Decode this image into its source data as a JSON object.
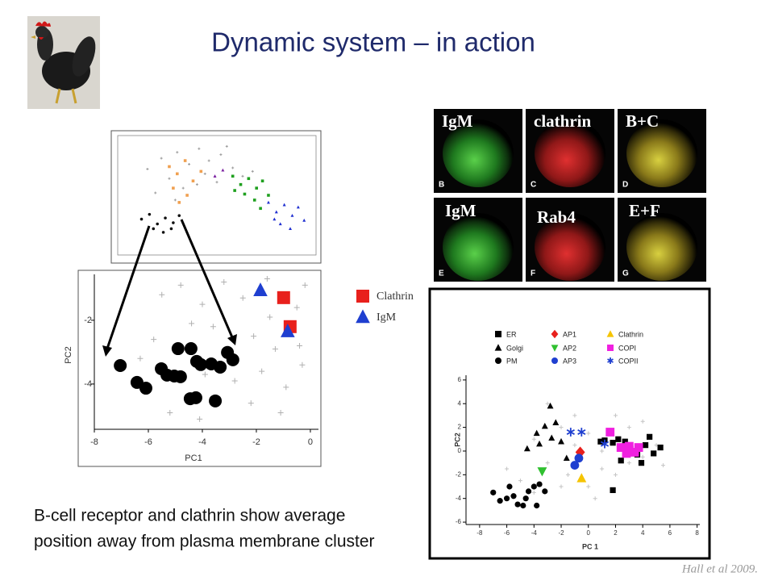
{
  "header": {
    "title": "Dynamic system – in action"
  },
  "body_text": [
    "B-cell receptor and clathrin show average",
    "position away from plasma membrane cluster"
  ],
  "citation": "Hall et al 2009.",
  "micrographs": [
    {
      "label": "IgM",
      "letter": "B"
    },
    {
      "label": "clathrin",
      "letter": "C"
    },
    {
      "label": "B+C",
      "letter": "D"
    },
    {
      "label": "IgM",
      "letter": "E"
    },
    {
      "label": "Rab4",
      "letter": "F"
    },
    {
      "label": "E+F",
      "letter": "G"
    }
  ],
  "chart_data": [
    {
      "type": "scatter",
      "xlim": [
        0,
        10
      ],
      "ylim": [
        0,
        10
      ],
      "series": [
        {
          "color": "#9a9a9a",
          "marker": "cross",
          "x": [
            1.5,
            2.2,
            3.0,
            3.6,
            4.1,
            4.6,
            5.2,
            2.6,
            3.3,
            4.4,
            5.0,
            5.8,
            6.3,
            1.9,
            2.9,
            4.0,
            6.8,
            5.5
          ],
          "y": [
            7.2,
            8.1,
            8.6,
            7.6,
            8.9,
            7.9,
            8.4,
            6.4,
            5.6,
            6.8,
            6.1,
            7.3,
            6.6,
            5.2,
            4.6,
            5.9,
            7.0,
            9.1
          ]
        },
        {
          "color": "#f0a050",
          "marker": "square",
          "x": [
            2.6,
            3.0,
            3.4,
            3.8,
            2.8,
            3.5,
            4.2,
            3.1
          ],
          "y": [
            7.4,
            6.8,
            7.9,
            6.2,
            5.6,
            5.0,
            7.0,
            4.4
          ]
        },
        {
          "color": "#7a1fa0",
          "marker": "triangle",
          "x": [
            4.9,
            5.3
          ],
          "y": [
            6.6,
            7.1
          ]
        },
        {
          "color": "#1fa01f",
          "marker": "square",
          "x": [
            5.8,
            6.2,
            6.6,
            7.0,
            7.3,
            6.4,
            6.9,
            7.6,
            5.9,
            7.2
          ],
          "y": [
            6.6,
            5.9,
            6.4,
            5.6,
            6.2,
            5.1,
            4.6,
            5.0,
            5.4,
            3.9
          ]
        },
        {
          "color": "#1f2fd0",
          "marker": "triangle",
          "x": [
            7.6,
            8.0,
            8.4,
            8.8,
            9.1,
            8.2,
            8.7,
            7.9,
            9.4
          ],
          "y": [
            4.4,
            3.6,
            4.2,
            3.3,
            4.0,
            2.6,
            2.2,
            3.0,
            2.9
          ]
        },
        {
          "color": "#111111",
          "marker": "circle",
          "x": [
            1.2,
            1.6,
            2.0,
            2.4,
            2.8,
            1.8,
            2.3,
            2.7,
            3.1
          ],
          "y": [
            3.0,
            3.4,
            2.6,
            3.1,
            2.7,
            2.2,
            1.9,
            2.2,
            3.3
          ]
        }
      ]
    },
    {
      "type": "scatter",
      "x_label": "PC1",
      "y_label": "PC2",
      "xlim": [
        -8,
        0.3
      ],
      "ylim": [
        -5.42,
        -0.56
      ],
      "xticks": [
        -8,
        -6,
        -4,
        -2,
        0
      ],
      "yticks": [
        -2,
        -4
      ],
      "series": [
        {
          "color": "#b0b0b0",
          "marker": "cross",
          "x": [
            -5.5,
            -4.8,
            -4.0,
            -3.2,
            -2.5,
            -1.6,
            -0.5,
            -0.2,
            -3.6,
            -2.1,
            -1.3,
            -0.4,
            -5.8,
            -2.8,
            -1.8,
            -0.9,
            -5.2,
            -4.1,
            -2.2,
            -1.1,
            -6.3,
            -3.9,
            -1.5,
            -4.4,
            -0.3
          ],
          "y": [
            -1.2,
            -0.9,
            -1.5,
            -0.8,
            -1.3,
            -0.7,
            -1.6,
            -0.9,
            -2.2,
            -2.5,
            -2.9,
            -2.8,
            -2.6,
            -3.9,
            -3.6,
            -4.1,
            -4.9,
            -5.1,
            -4.6,
            -4.9,
            -3.2,
            -3.7,
            -1.9,
            -2.1,
            -3.4
          ]
        },
        {
          "color": "#000000",
          "marker": "circle",
          "x": [
            -7.04,
            -6.42,
            -6.09,
            -5.52,
            -5.31,
            -5.04,
            -4.81,
            -4.9,
            -4.42,
            -4.21,
            -4.06,
            -4.45,
            -4.24,
            -3.67,
            -3.34,
            -3.52,
            -3.07,
            -2.87
          ],
          "y": [
            -3.42,
            -3.95,
            -4.13,
            -3.52,
            -3.72,
            -3.75,
            -3.77,
            -2.89,
            -2.89,
            -3.29,
            -3.39,
            -4.46,
            -4.43,
            -3.37,
            -3.47,
            -4.53,
            -3.01,
            -3.24
          ]
        },
        {
          "name": "Clathrin",
          "color": "#e8201c",
          "marker": "square",
          "x": [
            -0.99,
            -0.75
          ],
          "y": [
            -1.29,
            -2.2
          ]
        },
        {
          "name": "IgM",
          "color": "#1f3fd0",
          "marker": "triangle",
          "x": [
            -1.85,
            -0.84
          ],
          "y": [
            -1.06,
            -2.35
          ]
        }
      ]
    },
    {
      "type": "scatter",
      "x_label": "PC 1",
      "y_label": "PC2",
      "xlim": [
        -9,
        8.2
      ],
      "ylim": [
        -6.2,
        6.4
      ],
      "xticks": [
        -8,
        -6,
        -4,
        -2,
        0,
        2,
        4,
        6,
        8
      ],
      "yticks": [
        -6,
        -4,
        -2,
        0,
        2,
        4,
        6
      ],
      "series": [
        {
          "color": "#c4c4c4",
          "marker": "cross",
          "x": [
            -5,
            -3,
            -2,
            -4,
            -1,
            0,
            1,
            2,
            3,
            4,
            5,
            -2,
            0,
            2,
            -3,
            -1,
            3,
            -6,
            1,
            5.5,
            -1.5,
            4,
            0.5,
            -4
          ],
          "y": [
            -2.5,
            -1,
            2,
            1,
            3,
            1.5,
            -1.5,
            -2,
            -1,
            -0.5,
            0.5,
            -3,
            -3,
            3,
            4,
            0.5,
            2,
            -1.5,
            0,
            -1.2,
            -2,
            2.5,
            -4,
            -3.5
          ]
        },
        {
          "name": "ER",
          "color": "#000000",
          "marker": "square",
          "x": [
            1.2,
            1.8,
            2.2,
            2.7,
            3.1,
            3.6,
            4.2,
            4.8,
            5.3,
            3.9,
            1.8,
            2.4,
            4.5,
            0.9
          ],
          "y": [
            0.9,
            0.7,
            1.0,
            0.8,
            0.2,
            -0.3,
            0.5,
            -0.2,
            0.3,
            -1,
            -3.3,
            -0.8,
            1.2,
            0.8
          ]
        },
        {
          "name": "Golgi",
          "color": "#000000",
          "marker": "triangle",
          "x": [
            -4.5,
            -3.8,
            -3.2,
            -2.8,
            -2.4,
            -2.0,
            -1.6,
            -3.6,
            -2.7
          ],
          "y": [
            0.2,
            1.5,
            2.1,
            3.8,
            2.4,
            0.8,
            -0.6,
            0.6,
            1.1
          ]
        },
        {
          "name": "PM",
          "color": "#000000",
          "marker": "circle",
          "x": [
            -7.0,
            -6.5,
            -6.0,
            -5.5,
            -5.2,
            -4.8,
            -4.4,
            -4.0,
            -3.6,
            -3.2,
            -5.8,
            -4.6,
            -3.8
          ],
          "y": [
            -3.5,
            -4.2,
            -4.0,
            -3.8,
            -4.5,
            -4.6,
            -3.4,
            -3.0,
            -2.8,
            -3.4,
            -3.0,
            -4.0,
            -4.6
          ]
        },
        {
          "name": "AP1",
          "color": "#e8201c",
          "marker": "diamond",
          "x": [
            -0.6
          ],
          "y": [
            -0.1
          ]
        },
        {
          "name": "AP2",
          "color": "#30c030",
          "marker": "triangle-down",
          "x": [
            -3.4
          ],
          "y": [
            -1.7
          ]
        },
        {
          "name": "AP3",
          "color": "#1f3fd0",
          "marker": "circle",
          "x": [
            -1.0,
            -0.7
          ],
          "y": [
            -1.2,
            -0.6
          ]
        },
        {
          "name": "Clathrin",
          "color": "#f5c400",
          "marker": "triangle",
          "x": [
            -0.5
          ],
          "y": [
            -2.3
          ]
        },
        {
          "name": "COPI",
          "color": "#f020e0",
          "marker": "square",
          "x": [
            1.6,
            2.4,
            3.0,
            3.4,
            3.7,
            2.8
          ],
          "y": [
            1.6,
            0.3,
            0.4,
            -0.1,
            0.3,
            -0.2
          ]
        },
        {
          "name": "COPII",
          "color": "#1f3fd0",
          "marker": "asterisk",
          "x": [
            -1.3,
            -0.5,
            1.2
          ],
          "y": [
            1.6,
            1.6,
            0.6
          ]
        }
      ]
    }
  ]
}
